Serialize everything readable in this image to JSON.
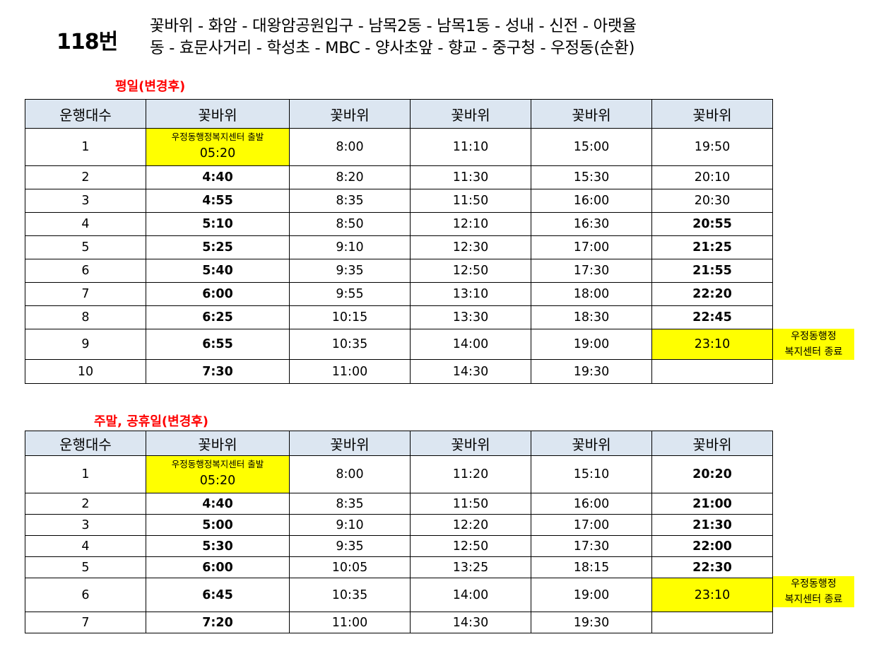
{
  "route": {
    "number": "118번",
    "line1": "꽃바위 - 화암 - 대왕암공원입구 - 남목2동 - 남목1동 - 성내 - 신전 - 아랫율",
    "line2": "동 - 효문사거리 - 학성초 - MBC - 양사초앞 - 향교 - 중구청 - 우정동(순환)"
  },
  "weekday": {
    "title": "평일(변경후)",
    "headers": [
      "운행대수",
      "꽃바위",
      "꽃바위",
      "꽃바위",
      "꽃바위",
      "꽃바위"
    ],
    "first_note": "우정동행정복지센터 출발",
    "rows": [
      [
        "1",
        "05:20",
        "8:00",
        "11:10",
        "15:00",
        "19:50"
      ],
      [
        "2",
        "4:40",
        "8:20",
        "11:30",
        "15:30",
        "20:10"
      ],
      [
        "3",
        "4:55",
        "8:35",
        "11:50",
        "16:00",
        "20:30"
      ],
      [
        "4",
        "5:10",
        "8:50",
        "12:10",
        "16:30",
        "20:55"
      ],
      [
        "5",
        "5:25",
        "9:10",
        "12:30",
        "17:00",
        "21:25"
      ],
      [
        "6",
        "5:40",
        "9:35",
        "12:50",
        "17:30",
        "21:55"
      ],
      [
        "7",
        "6:00",
        "9:55",
        "13:10",
        "18:00",
        "22:20"
      ],
      [
        "8",
        "6:25",
        "10:15",
        "13:30",
        "18:30",
        "22:45"
      ],
      [
        "9",
        "6:55",
        "10:35",
        "14:00",
        "19:00",
        "23:10"
      ],
      [
        "10",
        "7:30",
        "11:00",
        "14:30",
        "19:30",
        ""
      ]
    ],
    "end_note_line1": "우정동행정",
    "end_note_line2": "복지센터 종료"
  },
  "weekend": {
    "title": "주말, 공휴일(변경후)",
    "headers": [
      "운행대수",
      "꽃바위",
      "꽃바위",
      "꽃바위",
      "꽃바위",
      "꽃바위"
    ],
    "first_note": "우정동행정복지센터 출발",
    "rows": [
      [
        "1",
        "05:20",
        "8:00",
        "11:20",
        "15:10",
        "20:20"
      ],
      [
        "2",
        "4:40",
        "8:35",
        "11:50",
        "16:00",
        "21:00"
      ],
      [
        "3",
        "5:00",
        "9:10",
        "12:20",
        "17:00",
        "21:30"
      ],
      [
        "4",
        "5:30",
        "9:35",
        "12:50",
        "17:30",
        "22:00"
      ],
      [
        "5",
        "6:00",
        "10:05",
        "13:25",
        "18:15",
        "22:30"
      ],
      [
        "6",
        "6:45",
        "10:35",
        "14:00",
        "19:00",
        "23:10"
      ],
      [
        "7",
        "7:20",
        "11:00",
        "14:30",
        "19:30",
        ""
      ]
    ],
    "end_note_line1": "우정동행정",
    "end_note_line2": "복지센터 종료"
  },
  "colors": {
    "header_bg": "#dce6f1",
    "highlight": "#ffff00",
    "section_title": "#ff0000"
  }
}
